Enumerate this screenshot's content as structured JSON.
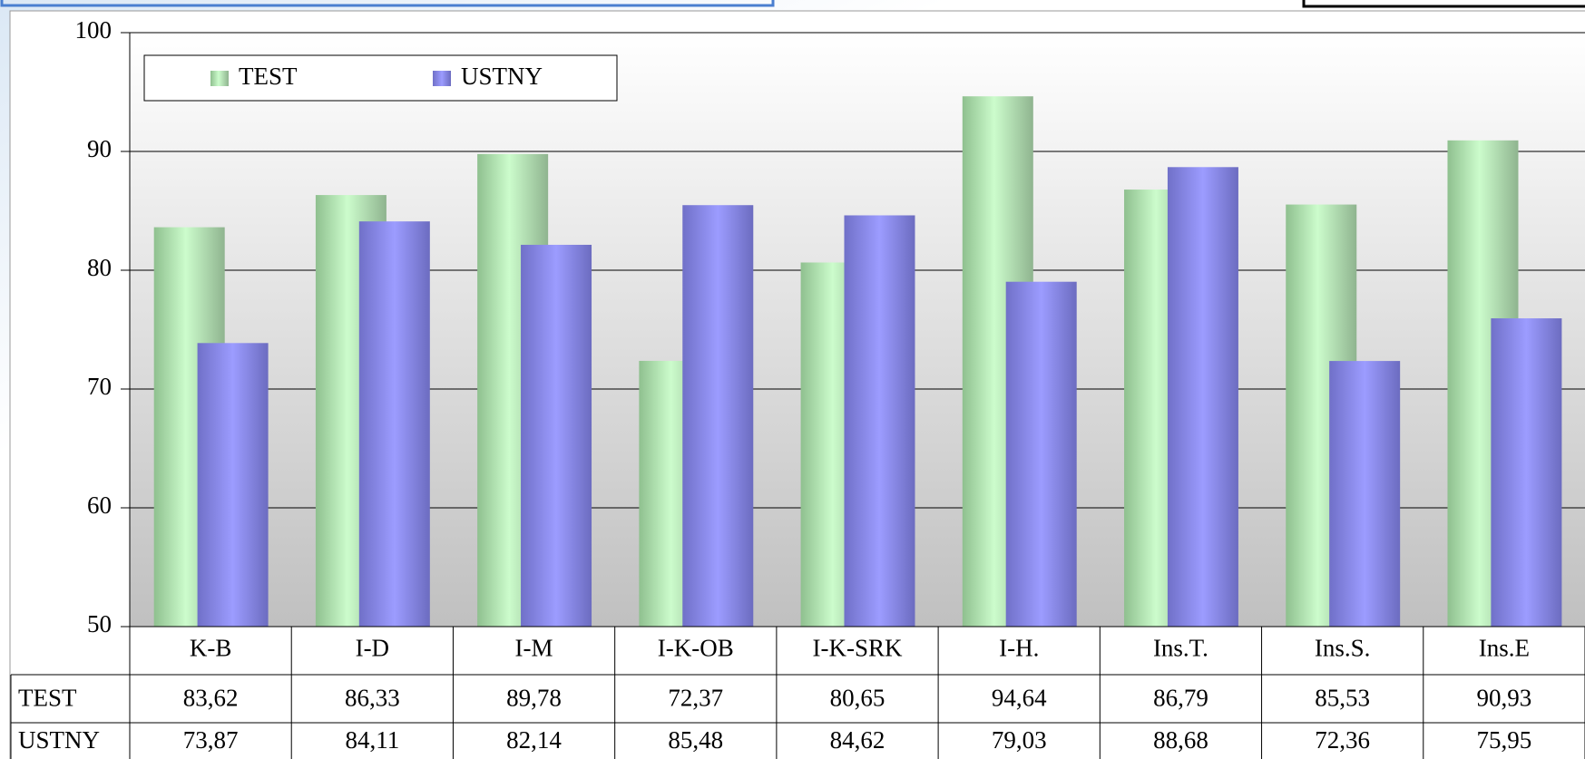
{
  "chart_data": {
    "type": "bar",
    "categories": [
      "K-B",
      "I-D",
      "I-M",
      "I-K-OB",
      "I-K-SRK",
      "I-H.",
      "Ins.T.",
      "Ins.S.",
      "Ins.E"
    ],
    "series": [
      {
        "name": "TEST",
        "color": "#c6f7c6",
        "values": [
          83.62,
          86.33,
          89.78,
          72.37,
          80.65,
          94.64,
          86.79,
          85.53,
          90.93
        ],
        "value_labels": [
          "83,62",
          "86,33",
          "89,78",
          "72,37",
          "80,65",
          "94,64",
          "86,79",
          "85,53",
          "90,93"
        ]
      },
      {
        "name": "USTNY",
        "color": "#9999ff",
        "values": [
          73.87,
          84.11,
          82.14,
          85.48,
          84.62,
          79.03,
          88.68,
          72.36,
          75.95
        ],
        "value_labels": [
          "73,87",
          "84,11",
          "82,14",
          "85,48",
          "84,62",
          "79,03",
          "88,68",
          "72,36",
          "75,95"
        ]
      }
    ],
    "ylim": [
      50,
      100
    ],
    "yticks": [
      50,
      60,
      70,
      80,
      90,
      100
    ],
    "grid": true
  }
}
